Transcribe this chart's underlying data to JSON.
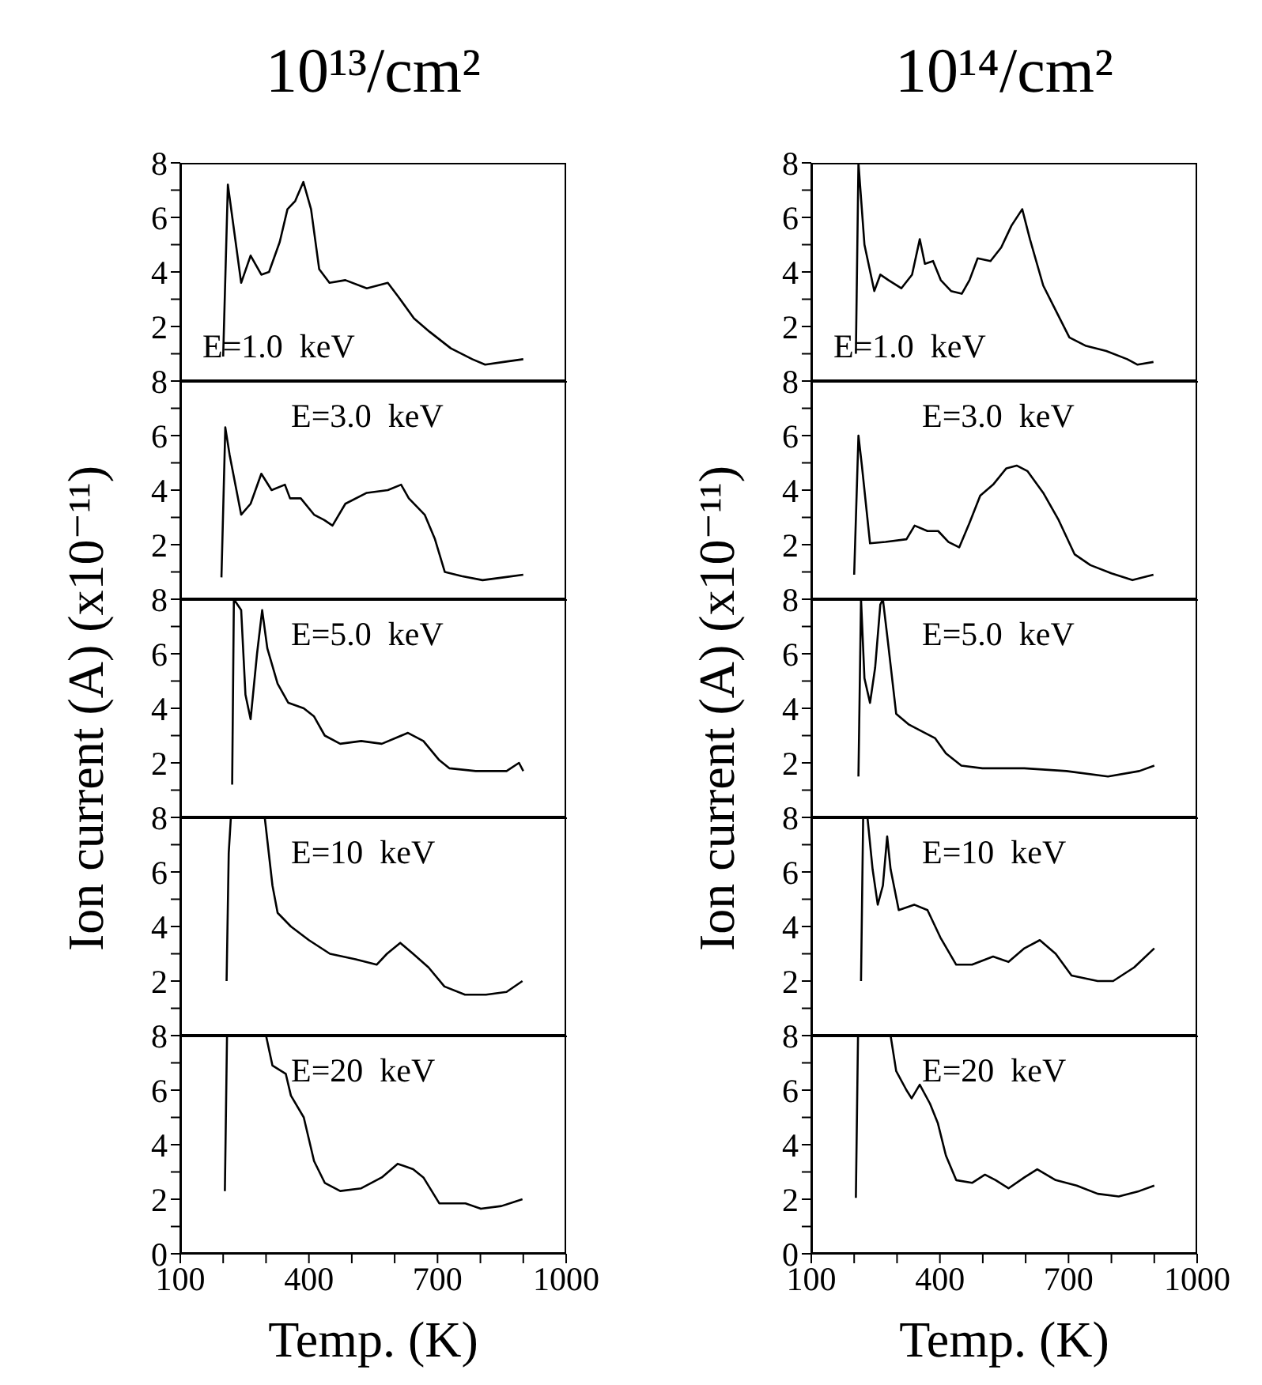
{
  "chart_data": [
    {
      "type": "line",
      "title": "10¹³/cm²",
      "annotations": [
        "E=1.0  keV"
      ],
      "xlim": [
        100,
        1000
      ],
      "ylim": [
        0,
        8
      ],
      "tick_labels": "y",
      "xticks": [
        100,
        {
          "value": 200,
          "label": null
        },
        {
          "value": 300,
          "label": null
        },
        400,
        {
          "value": 500,
          "label": null
        },
        {
          "value": 600,
          "label": null
        },
        700,
        {
          "value": 800,
          "label": null
        },
        {
          "value": 900,
          "label": null
        },
        1000
      ],
      "yticks": [
        {
          "value": 1,
          "label": null
        },
        2,
        {
          "value": 3,
          "label": null
        },
        4,
        {
          "value": 5,
          "label": null
        },
        6,
        {
          "value": 7,
          "label": null
        },
        8
      ],
      "series": [
        {
          "color": "#000000",
          "x": [
            200,
            211,
            242,
            264,
            289,
            307,
            332,
            350,
            368,
            387,
            405,
            424,
            448,
            485,
            535,
            584,
            608,
            645,
            682,
            731,
            781,
            811,
            854,
            900
          ],
          "values": [
            0.9,
            7.2,
            3.6,
            4.6,
            3.9,
            4.0,
            5.1,
            6.3,
            6.6,
            7.3,
            6.3,
            4.1,
            3.6,
            3.7,
            3.4,
            3.6,
            3.1,
            2.3,
            1.8,
            1.2,
            0.8,
            0.6,
            0.7,
            0.8
          ]
        }
      ]
    },
    {
      "type": "line",
      "annotations": [
        "E=3.0  keV"
      ],
      "xlim": [
        100,
        1000
      ],
      "ylim": [
        0,
        8
      ],
      "tick_labels": "y",
      "xticks": [
        100,
        {
          "value": 200,
          "label": null
        },
        {
          "value": 300,
          "label": null
        },
        400,
        {
          "value": 500,
          "label": null
        },
        {
          "value": 600,
          "label": null
        },
        700,
        {
          "value": 800,
          "label": null
        },
        {
          "value": 900,
          "label": null
        },
        1000
      ],
      "yticks": [
        {
          "value": 1,
          "label": null
        },
        2,
        {
          "value": 3,
          "label": null
        },
        4,
        {
          "value": 5,
          "label": null
        },
        6,
        {
          "value": 7,
          "label": null
        },
        8
      ],
      "series": [
        {
          "color": "#000000",
          "x": [
            196,
            205,
            215,
            242,
            264,
            289,
            313,
            344,
            356,
            381,
            412,
            436,
            455,
            485,
            535,
            584,
            615,
            633,
            670,
            694,
            717,
            756,
            805,
            854,
            900
          ],
          "values": [
            0.8,
            6.3,
            5.3,
            3.1,
            3.5,
            4.6,
            4.0,
            4.2,
            3.7,
            3.7,
            3.1,
            2.9,
            2.7,
            3.5,
            3.9,
            4.0,
            4.2,
            3.7,
            3.1,
            2.2,
            1.0,
            0.85,
            0.7,
            0.8,
            0.9
          ]
        }
      ]
    },
    {
      "type": "line",
      "ylabel": "Ion current (A) (x10⁻¹¹)",
      "annotations": [
        "E=5.0  keV"
      ],
      "xlim": [
        100,
        1000
      ],
      "ylim": [
        0,
        8
      ],
      "tick_labels": "y",
      "xticks": [
        100,
        {
          "value": 200,
          "label": null
        },
        {
          "value": 300,
          "label": null
        },
        400,
        {
          "value": 500,
          "label": null
        },
        {
          "value": 600,
          "label": null
        },
        700,
        {
          "value": 800,
          "label": null
        },
        {
          "value": 900,
          "label": null
        },
        1000
      ],
      "yticks": [
        {
          "value": 1,
          "label": null
        },
        2,
        {
          "value": 3,
          "label": null
        },
        4,
        {
          "value": 5,
          "label": null
        },
        6,
        {
          "value": 7,
          "label": null
        },
        8
      ],
      "series": [
        {
          "color": "#000000",
          "x": [
            221,
            225,
            242,
            252,
            264,
            279,
            291,
            303,
            327,
            352,
            388,
            412,
            437,
            473,
            522,
            570,
            631,
            667,
            704,
            728,
            789,
            861,
            890,
            900
          ],
          "values": [
            1.2,
            8,
            7.6,
            4.5,
            3.6,
            6.0,
            7.6,
            6.2,
            4.9,
            4.2,
            4.0,
            3.7,
            3.0,
            2.7,
            2.8,
            2.7,
            3.1,
            2.8,
            2.1,
            1.8,
            1.7,
            1.7,
            2.0,
            1.7
          ]
        }
      ]
    },
    {
      "type": "line",
      "annotations": [
        "E=10  keV"
      ],
      "xlim": [
        100,
        1000
      ],
      "ylim": [
        0,
        8
      ],
      "tick_labels": "y",
      "xticks": [
        100,
        {
          "value": 200,
          "label": null
        },
        {
          "value": 300,
          "label": null
        },
        400,
        {
          "value": 500,
          "label": null
        },
        {
          "value": 600,
          "label": null
        },
        700,
        {
          "value": 800,
          "label": null
        },
        {
          "value": 900,
          "label": null
        },
        1000
      ],
      "yticks": [
        {
          "value": 1,
          "label": null
        },
        2,
        {
          "value": 3,
          "label": null
        },
        4,
        {
          "value": 5,
          "label": null
        },
        6,
        {
          "value": 7,
          "label": null
        },
        8
      ],
      "series": [
        {
          "color": "#000000",
          "x": [
            208,
            213,
            218,
            297,
            315,
            327,
            358,
            400,
            449,
            509,
            558,
            582,
            613,
            643,
            679,
            716,
            764,
            813,
            861,
            898
          ],
          "values": [
            2.0,
            6.7,
            8,
            8,
            5.5,
            4.5,
            4.0,
            3.5,
            3.0,
            2.8,
            2.6,
            3.0,
            3.4,
            3.0,
            2.5,
            1.8,
            1.5,
            1.5,
            1.6,
            2.0
          ]
        }
      ]
    },
    {
      "type": "line",
      "xlabel": "Temp. (K)",
      "annotations": [
        "E=20  keV"
      ],
      "xlim": [
        100,
        1000
      ],
      "ylim": [
        0,
        8
      ],
      "xticks": [
        100,
        {
          "value": 200,
          "label": null
        },
        {
          "value": 300,
          "label": null
        },
        400,
        {
          "value": 500,
          "label": null
        },
        {
          "value": 600,
          "label": null
        },
        700,
        {
          "value": 800,
          "label": null
        },
        {
          "value": 900,
          "label": null
        },
        1000
      ],
      "yticks": [
        0,
        {
          "value": 1,
          "label": null
        },
        2,
        {
          "value": 3,
          "label": null
        },
        4,
        {
          "value": 5,
          "label": null
        },
        6,
        {
          "value": 7,
          "label": null
        },
        8
      ],
      "series": [
        {
          "color": "#000000",
          "x": [
            204,
            209,
            300,
            315,
            346,
            358,
            388,
            412,
            437,
            473,
            522,
            570,
            607,
            643,
            667,
            704,
            765,
            801,
            849,
            898
          ],
          "values": [
            2.3,
            8,
            8,
            6.9,
            6.6,
            5.8,
            5.0,
            3.4,
            2.6,
            2.3,
            2.4,
            2.8,
            3.3,
            3.1,
            2.8,
            1.85,
            1.85,
            1.65,
            1.75,
            2.0
          ]
        }
      ]
    },
    {
      "type": "line",
      "title": "10¹⁴/cm²",
      "annotations": [
        "E=1.0  keV"
      ],
      "xlim": [
        100,
        1000
      ],
      "ylim": [
        0,
        8
      ],
      "tick_labels": "y",
      "xticks": [
        100,
        {
          "value": 200,
          "label": null
        },
        {
          "value": 300,
          "label": null
        },
        400,
        {
          "value": 500,
          "label": null
        },
        {
          "value": 600,
          "label": null
        },
        700,
        {
          "value": 800,
          "label": null
        },
        {
          "value": 900,
          "label": null
        },
        1000
      ],
      "yticks": [
        {
          "value": 1,
          "label": null
        },
        2,
        {
          "value": 3,
          "label": null
        },
        4,
        {
          "value": 5,
          "label": null
        },
        6,
        {
          "value": 7,
          "label": null
        },
        8
      ],
      "series": [
        {
          "color": "#000000",
          "x": [
            204,
            210,
            224,
            247,
            261,
            280,
            310,
            335,
            353,
            365,
            384,
            402,
            426,
            451,
            469,
            488,
            518,
            543,
            567,
            592,
            610,
            641,
            665,
            702,
            739,
            788,
            837,
            861,
            898
          ],
          "values": [
            1.0,
            8,
            5.0,
            3.3,
            3.9,
            3.7,
            3.4,
            3.9,
            5.2,
            4.3,
            4.4,
            3.7,
            3.3,
            3.2,
            3.7,
            4.5,
            4.4,
            4.9,
            5.7,
            6.3,
            5.2,
            3.5,
            2.75,
            1.6,
            1.3,
            1.1,
            0.8,
            0.6,
            0.7
          ]
        }
      ]
    },
    {
      "type": "line",
      "annotations": [
        "E=3.0  keV"
      ],
      "xlim": [
        100,
        1000
      ],
      "ylim": [
        0,
        8
      ],
      "tick_labels": "y",
      "xticks": [
        100,
        {
          "value": 200,
          "label": null
        },
        {
          "value": 300,
          "label": null
        },
        400,
        {
          "value": 500,
          "label": null
        },
        {
          "value": 600,
          "label": null
        },
        700,
        {
          "value": 800,
          "label": null
        },
        {
          "value": 900,
          "label": null
        },
        1000
      ],
      "yticks": [
        {
          "value": 1,
          "label": null
        },
        2,
        {
          "value": 3,
          "label": null
        },
        4,
        {
          "value": 5,
          "label": null
        },
        6,
        {
          "value": 7,
          "label": null
        },
        8
      ],
      "series": [
        {
          "color": "#000000",
          "x": [
            200,
            210,
            218,
            237,
            273,
            322,
            341,
            371,
            396,
            420,
            445,
            469,
            494,
            524,
            555,
            579,
            604,
            641,
            677,
            714,
            751,
            800,
            849,
            898
          ],
          "values": [
            0.9,
            6.0,
            4.9,
            2.05,
            2.1,
            2.2,
            2.7,
            2.5,
            2.5,
            2.1,
            1.9,
            2.8,
            3.8,
            4.2,
            4.8,
            4.9,
            4.7,
            3.9,
            2.9,
            1.65,
            1.25,
            0.95,
            0.7,
            0.9
          ]
        }
      ]
    },
    {
      "type": "line",
      "ylabel": "Ion current (A) (x10⁻¹¹)",
      "annotations": [
        "E=5.0  keV"
      ],
      "xlim": [
        100,
        1000
      ],
      "ylim": [
        0,
        8
      ],
      "tick_labels": "y",
      "xticks": [
        100,
        {
          "value": 200,
          "label": null
        },
        {
          "value": 300,
          "label": null
        },
        400,
        {
          "value": 500,
          "label": null
        },
        {
          "value": 600,
          "label": null
        },
        700,
        {
          "value": 800,
          "label": null
        },
        {
          "value": 900,
          "label": null
        },
        1000
      ],
      "yticks": [
        {
          "value": 1,
          "label": null
        },
        2,
        {
          "value": 3,
          "label": null
        },
        4,
        {
          "value": 5,
          "label": null
        },
        6,
        {
          "value": 7,
          "label": null
        },
        8
      ],
      "series": [
        {
          "color": "#000000",
          "x": [
            210,
            216,
            224,
            237,
            249,
            261,
            267,
            279,
            298,
            328,
            365,
            389,
            414,
            450,
            499,
            597,
            695,
            792,
            865,
            900
          ],
          "values": [
            1.5,
            8,
            5.1,
            4.2,
            5.5,
            7.8,
            8,
            6.4,
            3.8,
            3.4,
            3.1,
            2.9,
            2.35,
            1.9,
            1.8,
            1.8,
            1.7,
            1.5,
            1.7,
            1.9
          ]
        }
      ]
    },
    {
      "type": "line",
      "annotations": [
        "E=10  keV"
      ],
      "xlim": [
        100,
        1000
      ],
      "ylim": [
        0,
        8
      ],
      "tick_labels": "y",
      "xticks": [
        100,
        {
          "value": 200,
          "label": null
        },
        {
          "value": 300,
          "label": null
        },
        400,
        {
          "value": 500,
          "label": null
        },
        {
          "value": 600,
          "label": null
        },
        700,
        {
          "value": 800,
          "label": null
        },
        {
          "value": 900,
          "label": null
        },
        1000
      ],
      "yticks": [
        {
          "value": 1,
          "label": null
        },
        2,
        {
          "value": 3,
          "label": null
        },
        4,
        {
          "value": 5,
          "label": null
        },
        6,
        {
          "value": 7,
          "label": null
        },
        8
      ],
      "series": [
        {
          "color": "#000000",
          "x": [
            216,
            221,
            231,
            243,
            255,
            267,
            277,
            285,
            304,
            340,
            371,
            401,
            438,
            475,
            524,
            560,
            597,
            633,
            670,
            707,
            768,
            804,
            853,
            900
          ],
          "values": [
            2.0,
            8,
            8,
            6.1,
            4.8,
            5.5,
            7.3,
            6.1,
            4.6,
            4.8,
            4.6,
            3.6,
            2.6,
            2.6,
            2.9,
            2.7,
            3.2,
            3.5,
            3.0,
            2.2,
            2.0,
            2.0,
            2.5,
            3.2
          ]
        }
      ]
    },
    {
      "type": "line",
      "xlabel": "Temp. (K)",
      "annotations": [
        "E=20  keV"
      ],
      "xlim": [
        100,
        1000
      ],
      "ylim": [
        0,
        8
      ],
      "xticks": [
        100,
        {
          "value": 200,
          "label": null
        },
        {
          "value": 300,
          "label": null
        },
        400,
        {
          "value": 500,
          "label": null
        },
        {
          "value": 600,
          "label": null
        },
        700,
        {
          "value": 800,
          "label": null
        },
        {
          "value": 900,
          "label": null
        },
        1000
      ],
      "yticks": [
        0,
        {
          "value": 1,
          "label": null
        },
        2,
        {
          "value": 3,
          "label": null
        },
        4,
        {
          "value": 5,
          "label": null
        },
        6,
        {
          "value": 7,
          "label": null
        },
        8
      ],
      "series": [
        {
          "color": "#000000",
          "x": [
            204,
            209,
            285,
            298,
            322,
            334,
            353,
            377,
            395,
            414,
            438,
            475,
            505,
            530,
            560,
            597,
            627,
            670,
            719,
            768,
            817,
            865,
            900
          ],
          "values": [
            2.05,
            8,
            8,
            6.7,
            6.0,
            5.7,
            6.2,
            5.5,
            4.8,
            3.6,
            2.7,
            2.6,
            2.9,
            2.7,
            2.4,
            2.8,
            3.1,
            2.7,
            2.5,
            2.2,
            2.1,
            2.3,
            2.5
          ]
        }
      ]
    }
  ]
}
